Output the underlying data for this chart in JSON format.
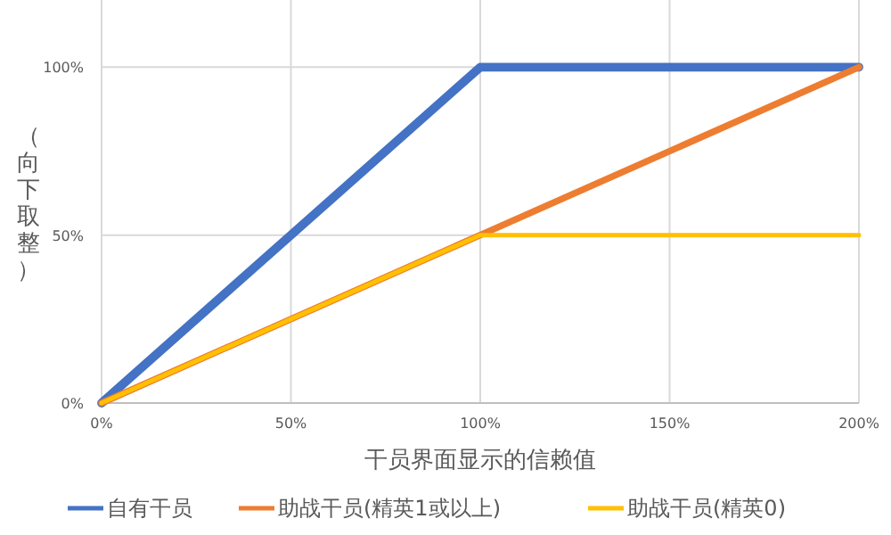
{
  "chart_data": {
    "type": "line",
    "xlabel": "干员界面显示的信赖值",
    "ylabel": "（向下取整）",
    "x": [
      0,
      100,
      200
    ],
    "xlim": [
      0,
      200
    ],
    "xticks": [
      {
        "value": 0,
        "label": "0%"
      },
      {
        "value": 50,
        "label": "50%"
      },
      {
        "value": 100,
        "label": "100%"
      },
      {
        "value": 150,
        "label": "150%"
      },
      {
        "value": 200,
        "label": "200%"
      }
    ],
    "ylim": [
      0,
      120
    ],
    "yticks": [
      {
        "value": 0,
        "label": "0%"
      },
      {
        "value": 50,
        "label": "50%"
      },
      {
        "value": 100,
        "label": "100%"
      }
    ],
    "grid": true,
    "legend": "bottom",
    "marker": "none",
    "line_style": "solid",
    "series": [
      {
        "name": "自有干员",
        "color": "#4472c4",
        "values": [
          0,
          100,
          100
        ]
      },
      {
        "name": "助战干员(精英1或以上)",
        "color": "#ed7d31",
        "values": [
          0,
          50,
          100
        ]
      },
      {
        "name": "助战干员(精英0)",
        "color": "#ffc000",
        "values": [
          0,
          50,
          50
        ]
      }
    ]
  }
}
